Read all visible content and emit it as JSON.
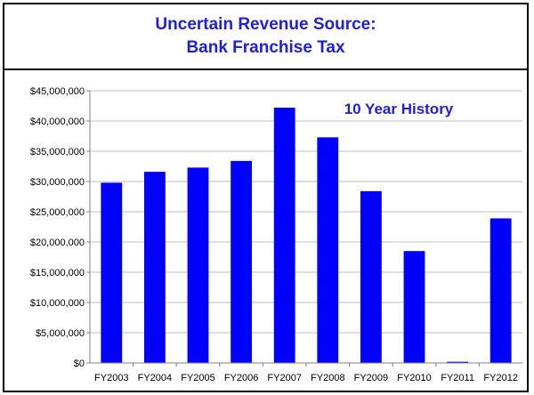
{
  "slide": {
    "title_line1": "Uncertain Revenue Source:",
    "title_line2": "Bank Franchise Tax"
  },
  "chart_data": {
    "type": "bar",
    "title": "",
    "annotation": "10 Year History",
    "categories": [
      "FY2003",
      "FY2004",
      "FY2005",
      "FY2006",
      "FY2007",
      "FY2008",
      "FY2009",
      "FY2010",
      "FY2011",
      "FY2012"
    ],
    "values": [
      29800000,
      31600000,
      32300000,
      33400000,
      42200000,
      37300000,
      28400000,
      18500000,
      200000,
      23900000
    ],
    "ylim": [
      0,
      45000000
    ],
    "yticks": [
      0,
      5000000,
      10000000,
      15000000,
      20000000,
      25000000,
      30000000,
      35000000,
      40000000,
      45000000
    ],
    "ytick_labels": [
      "$0",
      "$5,000,000",
      "$10,000,000",
      "$15,000,000",
      "$20,000,000",
      "$25,000,000",
      "$30,000,000",
      "$35,000,000",
      "$40,000,000",
      "$45,000,000"
    ],
    "xlabel": "",
    "ylabel": "",
    "grid": true,
    "bar_color": "#0000ff",
    "grid_color": "#bfbfbf",
    "annotation_color": "#1f1fd6"
  }
}
